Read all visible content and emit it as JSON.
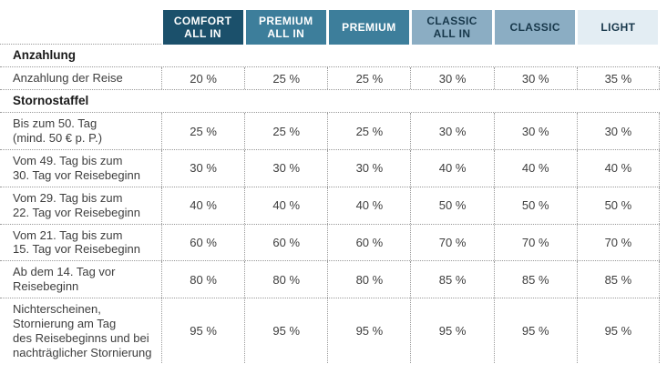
{
  "page": {
    "background": "#ffffff"
  },
  "table": {
    "border_color": "#9a9a9a",
    "columns": [
      {
        "id": "comfort-all-in",
        "lines": [
          "COMFORT",
          "ALL IN"
        ],
        "bg": "#1b506b",
        "fg": "#ffffff"
      },
      {
        "id": "premium-all-in",
        "lines": [
          "PREMIUM",
          "ALL IN"
        ],
        "bg": "#3d7e9b",
        "fg": "#ffffff"
      },
      {
        "id": "premium",
        "lines": [
          "PREMIUM"
        ],
        "bg": "#3d7e9b",
        "fg": "#ffffff"
      },
      {
        "id": "classic-all-in",
        "lines": [
          "CLASSIC",
          "ALL IN"
        ],
        "bg": "#8badc3",
        "fg": "#17374a"
      },
      {
        "id": "classic",
        "lines": [
          "CLASSIC"
        ],
        "bg": "#8badc3",
        "fg": "#17374a"
      },
      {
        "id": "light",
        "lines": [
          "LIGHT"
        ],
        "bg": "#e3edf3",
        "fg": "#17374a"
      }
    ],
    "rows": [
      {
        "type": "section",
        "label": "Anzahlung"
      },
      {
        "type": "data",
        "label_lines": [
          "Anzahlung der Reise"
        ],
        "values": [
          "20 %",
          "25 %",
          "25 %",
          "30 %",
          "30 %",
          "35 %"
        ]
      },
      {
        "type": "section",
        "label": "Stornostaffel"
      },
      {
        "type": "data",
        "label_lines": [
          "Bis zum 50. Tag",
          "(mind. 50 € p. P.)"
        ],
        "values": [
          "25 %",
          "25 %",
          "25 %",
          "30 %",
          "30 %",
          "30 %"
        ]
      },
      {
        "type": "data",
        "label_lines": [
          "Vom 49. Tag bis zum",
          "30. Tag vor Reisebeginn"
        ],
        "values": [
          "30 %",
          "30 %",
          "30 %",
          "40 %",
          "40 %",
          "40 %"
        ]
      },
      {
        "type": "data",
        "label_lines": [
          "Vom 29. Tag bis zum",
          "22. Tag vor Reisebeginn"
        ],
        "values": [
          "40 %",
          "40 %",
          "40 %",
          "50 %",
          "50 %",
          "50 %"
        ]
      },
      {
        "type": "data",
        "label_lines": [
          "Vom 21. Tag bis zum",
          "15. Tag vor Reisebeginn"
        ],
        "values": [
          "60 %",
          "60 %",
          "60 %",
          "70 %",
          "70 %",
          "70 %"
        ]
      },
      {
        "type": "data",
        "label_lines": [
          "Ab dem 14. Tag vor",
          "Reisebeginn"
        ],
        "values": [
          "80 %",
          "80 %",
          "80 %",
          "85 %",
          "85 %",
          "85 %"
        ]
      },
      {
        "type": "data",
        "label_lines": [
          "Nichterscheinen,",
          "Stornierung am Tag",
          "des Reisebeginns und bei",
          "nachträglicher Stornierung"
        ],
        "values": [
          "95 %",
          "95 %",
          "95 %",
          "95 %",
          "95 %",
          "95 %"
        ]
      }
    ]
  }
}
